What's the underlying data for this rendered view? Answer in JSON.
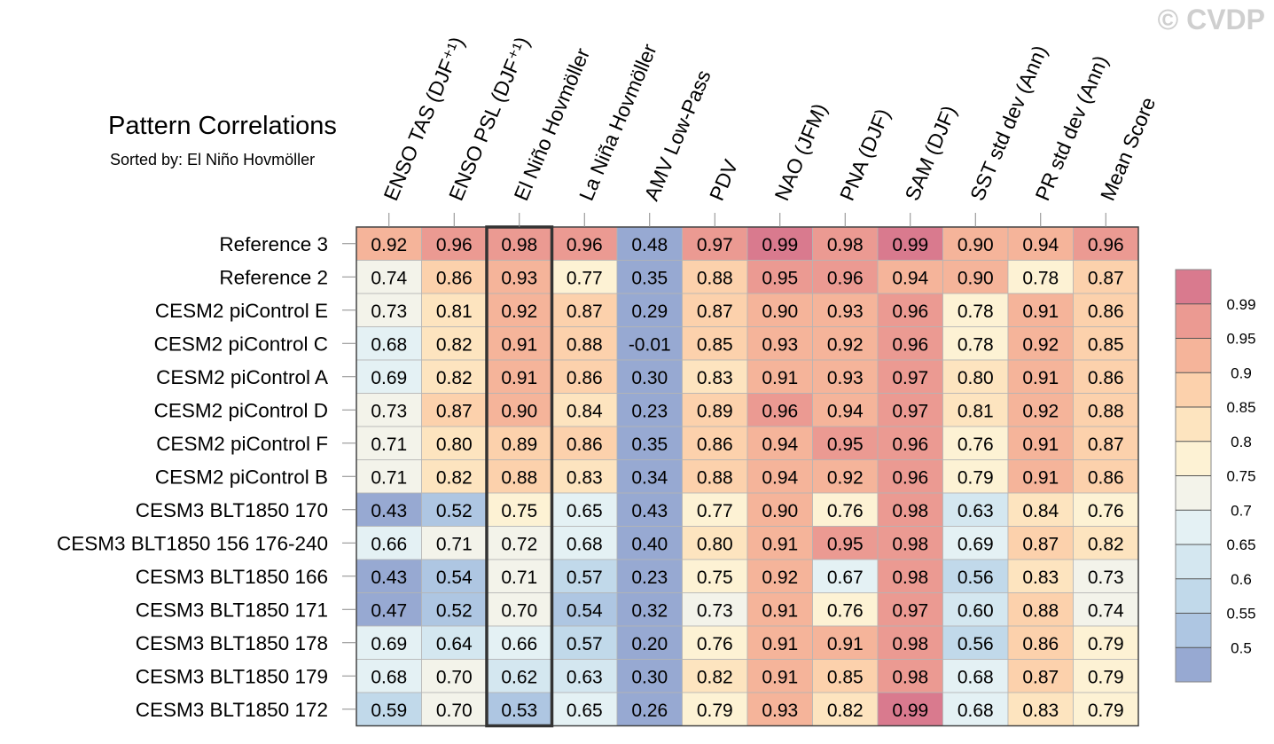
{
  "watermark": "© CVDP",
  "chart_data": {
    "type": "heatmap",
    "title": "Pattern Correlations",
    "subtitle": "Sorted by: El Niño Hovmöller",
    "columns": [
      "ENSO TAS (DJF⁺¹)",
      "ENSO PSL (DJF⁺¹)",
      "El Niño Hovmöller",
      "La Niña Hovmöller",
      "AMV Low-Pass",
      "PDV",
      "NAO (JFM)",
      "PNA (DJF)",
      "SAM (DJF)",
      "SST std dev (Ann)",
      "PR std dev (Ann)",
      "Mean Score"
    ],
    "highlighted_column": "El Niño Hovmöller",
    "rows": [
      "Reference 3",
      "Reference 2",
      "CESM2 piControl E",
      "CESM2 piControl C",
      "CESM2 piControl A",
      "CESM2 piControl D",
      "CESM2 piControl F",
      "CESM2 piControl B",
      "CESM3 BLT1850 170",
      "CESM3 BLT1850 156 176-240",
      "CESM3 BLT1850 166",
      "CESM3 BLT1850 171",
      "CESM3 BLT1850 178",
      "CESM3 BLT1850 179",
      "CESM3 BLT1850 172"
    ],
    "values": [
      [
        "0.92",
        "0.96",
        "0.98",
        "0.96",
        "0.48",
        "0.97",
        "0.99",
        "0.98",
        "0.99",
        "0.90",
        "0.94",
        "0.96"
      ],
      [
        "0.74",
        "0.86",
        "0.93",
        "0.77",
        "0.35",
        "0.88",
        "0.95",
        "0.96",
        "0.94",
        "0.90",
        "0.78",
        "0.87"
      ],
      [
        "0.73",
        "0.81",
        "0.92",
        "0.87",
        "0.29",
        "0.87",
        "0.90",
        "0.93",
        "0.96",
        "0.78",
        "0.91",
        "0.86"
      ],
      [
        "0.68",
        "0.82",
        "0.91",
        "0.88",
        "-0.01",
        "0.85",
        "0.93",
        "0.92",
        "0.96",
        "0.78",
        "0.92",
        "0.85"
      ],
      [
        "0.69",
        "0.82",
        "0.91",
        "0.86",
        "0.30",
        "0.83",
        "0.91",
        "0.93",
        "0.97",
        "0.80",
        "0.91",
        "0.86"
      ],
      [
        "0.73",
        "0.87",
        "0.90",
        "0.84",
        "0.23",
        "0.89",
        "0.96",
        "0.94",
        "0.97",
        "0.81",
        "0.92",
        "0.88"
      ],
      [
        "0.71",
        "0.80",
        "0.89",
        "0.86",
        "0.35",
        "0.86",
        "0.94",
        "0.95",
        "0.96",
        "0.76",
        "0.91",
        "0.87"
      ],
      [
        "0.71",
        "0.82",
        "0.88",
        "0.83",
        "0.34",
        "0.88",
        "0.94",
        "0.92",
        "0.96",
        "0.79",
        "0.91",
        "0.86"
      ],
      [
        "0.43",
        "0.52",
        "0.75",
        "0.65",
        "0.43",
        "0.77",
        "0.90",
        "0.76",
        "0.98",
        "0.63",
        "0.84",
        "0.76"
      ],
      [
        "0.66",
        "0.71",
        "0.72",
        "0.68",
        "0.40",
        "0.80",
        "0.91",
        "0.95",
        "0.98",
        "0.69",
        "0.87",
        "0.82"
      ],
      [
        "0.43",
        "0.54",
        "0.71",
        "0.57",
        "0.23",
        "0.75",
        "0.92",
        "0.67",
        "0.98",
        "0.56",
        "0.83",
        "0.73"
      ],
      [
        "0.47",
        "0.52",
        "0.70",
        "0.54",
        "0.32",
        "0.73",
        "0.91",
        "0.76",
        "0.97",
        "0.60",
        "0.88",
        "0.74"
      ],
      [
        "0.69",
        "0.64",
        "0.66",
        "0.57",
        "0.20",
        "0.76",
        "0.91",
        "0.91",
        "0.98",
        "0.56",
        "0.86",
        "0.79"
      ],
      [
        "0.68",
        "0.70",
        "0.62",
        "0.63",
        "0.30",
        "0.82",
        "0.91",
        "0.85",
        "0.98",
        "0.68",
        "0.87",
        "0.79"
      ],
      [
        "0.59",
        "0.70",
        "0.53",
        "0.65",
        "0.26",
        "0.79",
        "0.93",
        "0.82",
        "0.99",
        "0.68",
        "0.83",
        "0.79"
      ]
    ],
    "colorbar": {
      "levels": [
        0.5,
        0.55,
        0.6,
        0.65,
        0.7,
        0.75,
        0.8,
        0.85,
        0.9,
        0.95,
        0.99
      ],
      "tick_labels": [
        "0.5",
        "0.55",
        "0.6",
        "0.65",
        "0.7",
        "0.75",
        "0.8",
        "0.85",
        "0.9",
        "0.95",
        "0.99"
      ],
      "colors": [
        "#97a9d2",
        "#aec6e2",
        "#c1d9ea",
        "#d4e7f0",
        "#e4f1f4",
        "#f3f3ea",
        "#fdf2d4",
        "#fde4bf",
        "#fcd1ac",
        "#f5b49a",
        "#eb9a92",
        "#d97a8e"
      ]
    }
  }
}
